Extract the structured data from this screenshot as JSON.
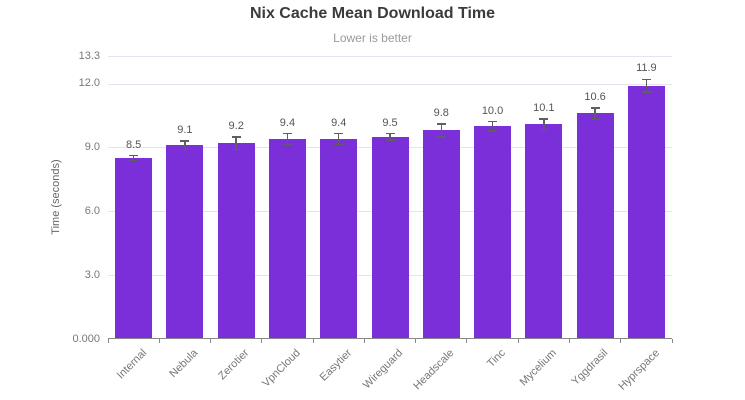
{
  "header": {
    "title": "Nix Cache Mean Download Time",
    "subtitle": "Lower is better"
  },
  "chart_data": {
    "type": "bar",
    "title": "Nix Cache Mean Download Time",
    "subtitle": "Lower is better",
    "categories": [
      "Internal",
      "Nebula",
      "Zerotier",
      "VpnCloud",
      "Easytier",
      "Wireguard",
      "Headscale",
      "Tinc",
      "Mycelium",
      "Yggdrasil",
      "Hyprspace"
    ],
    "values": [
      8.5,
      9.1,
      9.2,
      9.4,
      9.4,
      9.5,
      9.8,
      10.0,
      10.1,
      10.6,
      11.9
    ],
    "value_labels": [
      "8.5",
      "9.1",
      "9.2",
      "9.4",
      "9.4",
      "9.5",
      "9.8",
      "10.0",
      "10.1",
      "10.6",
      "11.9"
    ],
    "errors": [
      0.12,
      0.2,
      0.3,
      0.25,
      0.25,
      0.15,
      0.3,
      0.22,
      0.25,
      0.25,
      0.3
    ],
    "xlabel": "",
    "ylabel": "Time (seconds)",
    "ylim": [
      0,
      13.3
    ],
    "y_ticks": [
      {
        "value": 0,
        "label": "0.000"
      },
      {
        "value": 3,
        "label": "3.0"
      },
      {
        "value": 6,
        "label": "6.0"
      },
      {
        "value": 9,
        "label": "9.0"
      },
      {
        "value": 12,
        "label": "12.0"
      },
      {
        "value": 13.3,
        "label": "13.3"
      }
    ],
    "grid": true,
    "legend": false,
    "error_bars": true,
    "bar_color": "#7b2fd9",
    "error_color": "#5f5f5f",
    "grid_color": "#e4e4f0",
    "axis_color": "#888888"
  }
}
